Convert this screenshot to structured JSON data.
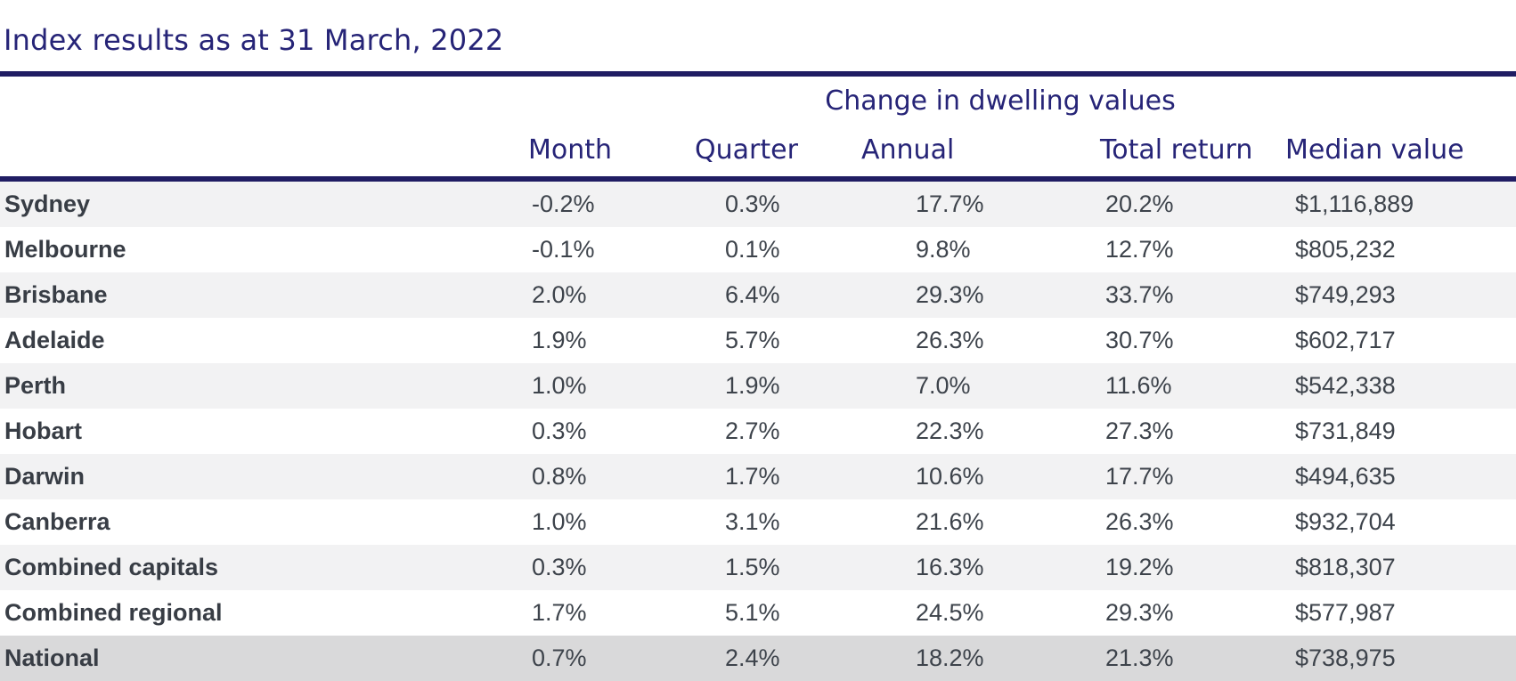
{
  "colors": {
    "navy_text": "#262477",
    "rule_navy": "#201d63",
    "body_text": "#3d434b",
    "region_text": "#383d45",
    "stripe_gray": "#f2f2f3",
    "national_row_gray": "#d9d9da"
  },
  "chart_data": {
    "type": "table",
    "title": "Index results as at 31 March, 2022",
    "group_header": "Change in dwelling values",
    "columns": [
      "Month",
      "Quarter",
      "Annual",
      "Total return",
      "Median value"
    ],
    "rows": [
      {
        "region": "Sydney",
        "month": "-0.2%",
        "quarter": "0.3%",
        "annual": "17.7%",
        "total_return": "20.2%",
        "median_value": "$1,116,889"
      },
      {
        "region": "Melbourne",
        "month": "-0.1%",
        "quarter": "0.1%",
        "annual": "9.8%",
        "total_return": "12.7%",
        "median_value": "$805,232"
      },
      {
        "region": "Brisbane",
        "month": "2.0%",
        "quarter": "6.4%",
        "annual": "29.3%",
        "total_return": "33.7%",
        "median_value": "$749,293"
      },
      {
        "region": "Adelaide",
        "month": "1.9%",
        "quarter": "5.7%",
        "annual": "26.3%",
        "total_return": "30.7%",
        "median_value": "$602,717"
      },
      {
        "region": "Perth",
        "month": "1.0%",
        "quarter": "1.9%",
        "annual": "7.0%",
        "total_return": "11.6%",
        "median_value": "$542,338"
      },
      {
        "region": "Hobart",
        "month": "0.3%",
        "quarter": "2.7%",
        "annual": "22.3%",
        "total_return": "27.3%",
        "median_value": "$731,849"
      },
      {
        "region": "Darwin",
        "month": "0.8%",
        "quarter": "1.7%",
        "annual": "10.6%",
        "total_return": "17.7%",
        "median_value": "$494,635"
      },
      {
        "region": "Canberra",
        "month": "1.0%",
        "quarter": "3.1%",
        "annual": "21.6%",
        "total_return": "26.3%",
        "median_value": "$932,704"
      },
      {
        "region": "Combined capitals",
        "month": "0.3%",
        "quarter": "1.5%",
        "annual": "16.3%",
        "total_return": "19.2%",
        "median_value": "$818,307"
      },
      {
        "region": "Combined regional",
        "month": "1.7%",
        "quarter": "5.1%",
        "annual": "24.5%",
        "total_return": "29.3%",
        "median_value": "$577,987"
      },
      {
        "region": "National",
        "month": "0.7%",
        "quarter": "2.4%",
        "annual": "18.2%",
        "total_return": "21.3%",
        "median_value": "$738,975"
      }
    ]
  }
}
